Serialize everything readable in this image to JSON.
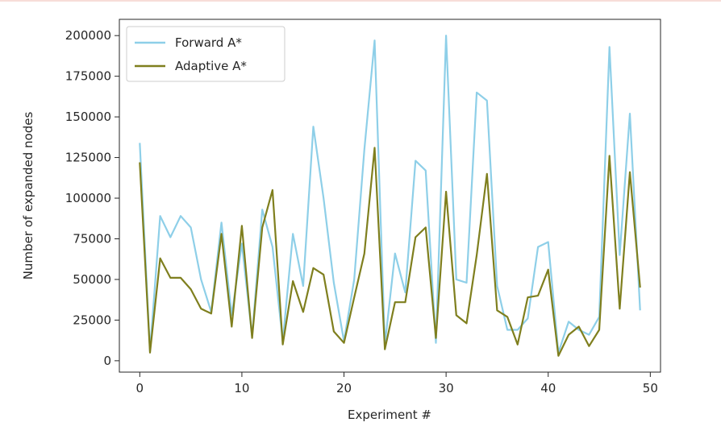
{
  "chart_data": {
    "type": "line",
    "title": "",
    "xlabel": "Experiment #",
    "ylabel": "Number of expanded nodes",
    "xlim": [
      -2,
      51
    ],
    "ylim": [
      -7000,
      210000
    ],
    "xticks": [
      0,
      10,
      20,
      30,
      40,
      50
    ],
    "yticks": [
      0,
      25000,
      50000,
      75000,
      100000,
      125000,
      150000,
      175000,
      200000
    ],
    "grid": false,
    "legend_position": "top-left",
    "x": [
      0,
      1,
      2,
      3,
      4,
      5,
      6,
      7,
      8,
      9,
      10,
      11,
      12,
      13,
      14,
      15,
      16,
      17,
      18,
      19,
      20,
      21,
      22,
      23,
      24,
      25,
      26,
      27,
      28,
      29,
      30,
      31,
      32,
      33,
      34,
      35,
      36,
      37,
      38,
      39,
      40,
      41,
      42,
      43,
      44,
      45,
      46,
      47,
      48,
      49
    ],
    "series": [
      {
        "name": "Forward A*",
        "color": "#8ecfe8",
        "values": [
          134000,
          6000,
          89000,
          76000,
          89000,
          82000,
          50000,
          30000,
          85000,
          28000,
          72000,
          15000,
          93000,
          70000,
          12000,
          78000,
          46000,
          144000,
          100000,
          48000,
          12000,
          50000,
          130000,
          197000,
          10000,
          66000,
          42000,
          123000,
          117000,
          11000,
          200000,
          50000,
          48000,
          165000,
          160000,
          46000,
          19000,
          19000,
          26000,
          70000,
          73000,
          5000,
          24000,
          19000,
          16000,
          27000,
          193000,
          65000,
          152000,
          31000
        ]
      },
      {
        "name": "Adaptive A*",
        "color": "#7f7f1e",
        "values": [
          122000,
          5000,
          63000,
          51000,
          51000,
          44000,
          32000,
          29000,
          78000,
          21000,
          83000,
          14000,
          82000,
          105000,
          10000,
          49000,
          30000,
          57000,
          53000,
          18000,
          11000,
          39000,
          66000,
          131000,
          7000,
          36000,
          36000,
          76000,
          82000,
          14000,
          104000,
          28000,
          23000,
          65000,
          115000,
          31000,
          27000,
          10000,
          39000,
          40000,
          56000,
          3000,
          16000,
          21000,
          9000,
          19000,
          126000,
          32000,
          116000,
          45000
        ]
      }
    ]
  }
}
